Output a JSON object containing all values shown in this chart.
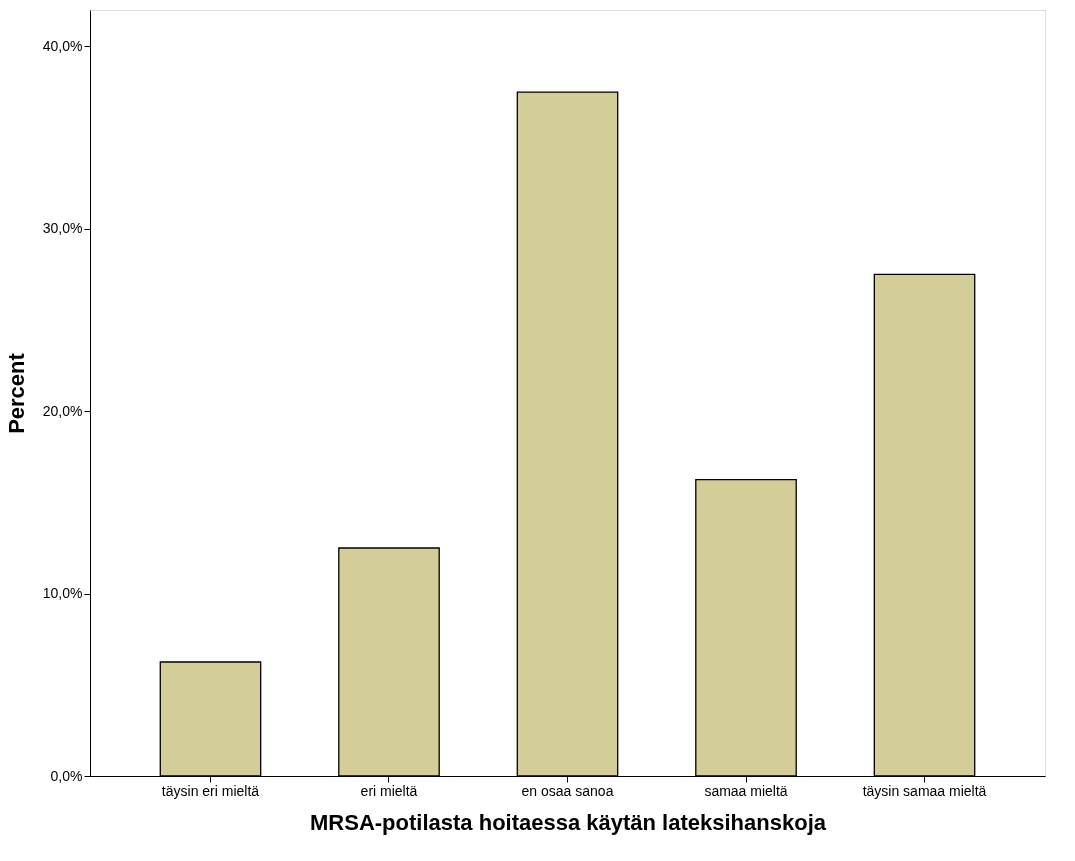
{
  "chart_data": {
    "type": "bar",
    "xlabel": "MRSA-potilasta hoitaessa käytän lateksihanskoja",
    "ylabel": "Percent",
    "categories": [
      "täysin eri mieltä",
      "eri mieltä",
      "en osaa sanoa",
      "samaa mieltä",
      "täysin samaa mieltä"
    ],
    "values": [
      6.25,
      12.5,
      37.5,
      16.25,
      27.5
    ],
    "color": "#d3ce97",
    "ylim": [
      0,
      42
    ],
    "yticks": [
      {
        "value": 0,
        "label": "0,0%"
      },
      {
        "value": 10,
        "label": "10,0%"
      },
      {
        "value": 20,
        "label": "20,0%"
      },
      {
        "value": 30,
        "label": "30,0%"
      },
      {
        "value": 40,
        "label": "40,0%"
      }
    ],
    "grid": false
  }
}
